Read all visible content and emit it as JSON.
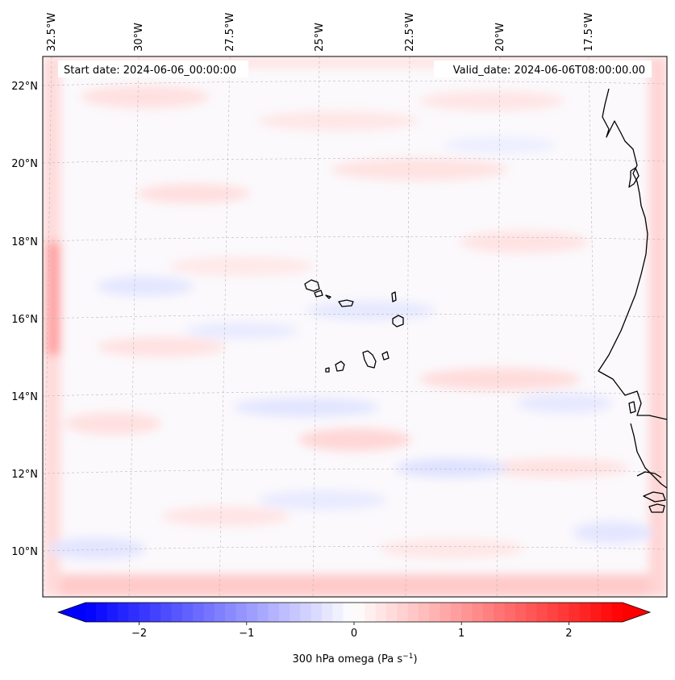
{
  "map": {
    "start_label": "Start date: 2024-06-06_00:00:00",
    "valid_label": "Valid_date: 2024-06-06T08:00:00.00",
    "lon_ticks": [
      "32.5°W",
      "30°W",
      "27.5°W",
      "25°W",
      "22.5°W",
      "20°W",
      "17.5°W"
    ],
    "lon_values": [
      -32.5,
      -30,
      -27.5,
      -25,
      -22.5,
      -20,
      -17.5
    ],
    "lat_ticks": [
      "22°N",
      "20°N",
      "18°N",
      "16°N",
      "14°N",
      "12°N",
      "10°N"
    ],
    "lat_values": [
      22,
      20,
      18,
      16,
      14,
      12,
      10
    ],
    "extent": {
      "lon_min": -32.8,
      "lon_max": -15.2,
      "lat_min": 8.9,
      "lat_max": 22.8
    },
    "field": "300 hPa omega",
    "units": "Pa s-1"
  },
  "colorbar": {
    "label_main": "300 hPa omega (Pa s",
    "label_exp": "−1",
    "label_close": ")",
    "tick_labels": [
      "−2",
      "−1",
      "0",
      "1",
      "2"
    ],
    "tick_values": [
      -2,
      -1,
      0,
      1,
      2
    ],
    "vmin": -2.5,
    "vmax": 2.5,
    "extend": "both"
  },
  "colors": {
    "negative": "#0000ff",
    "neutral": "#ffffff",
    "positive": "#ff0000",
    "coastline": "#000000",
    "gridline": "#b0b0b0"
  }
}
